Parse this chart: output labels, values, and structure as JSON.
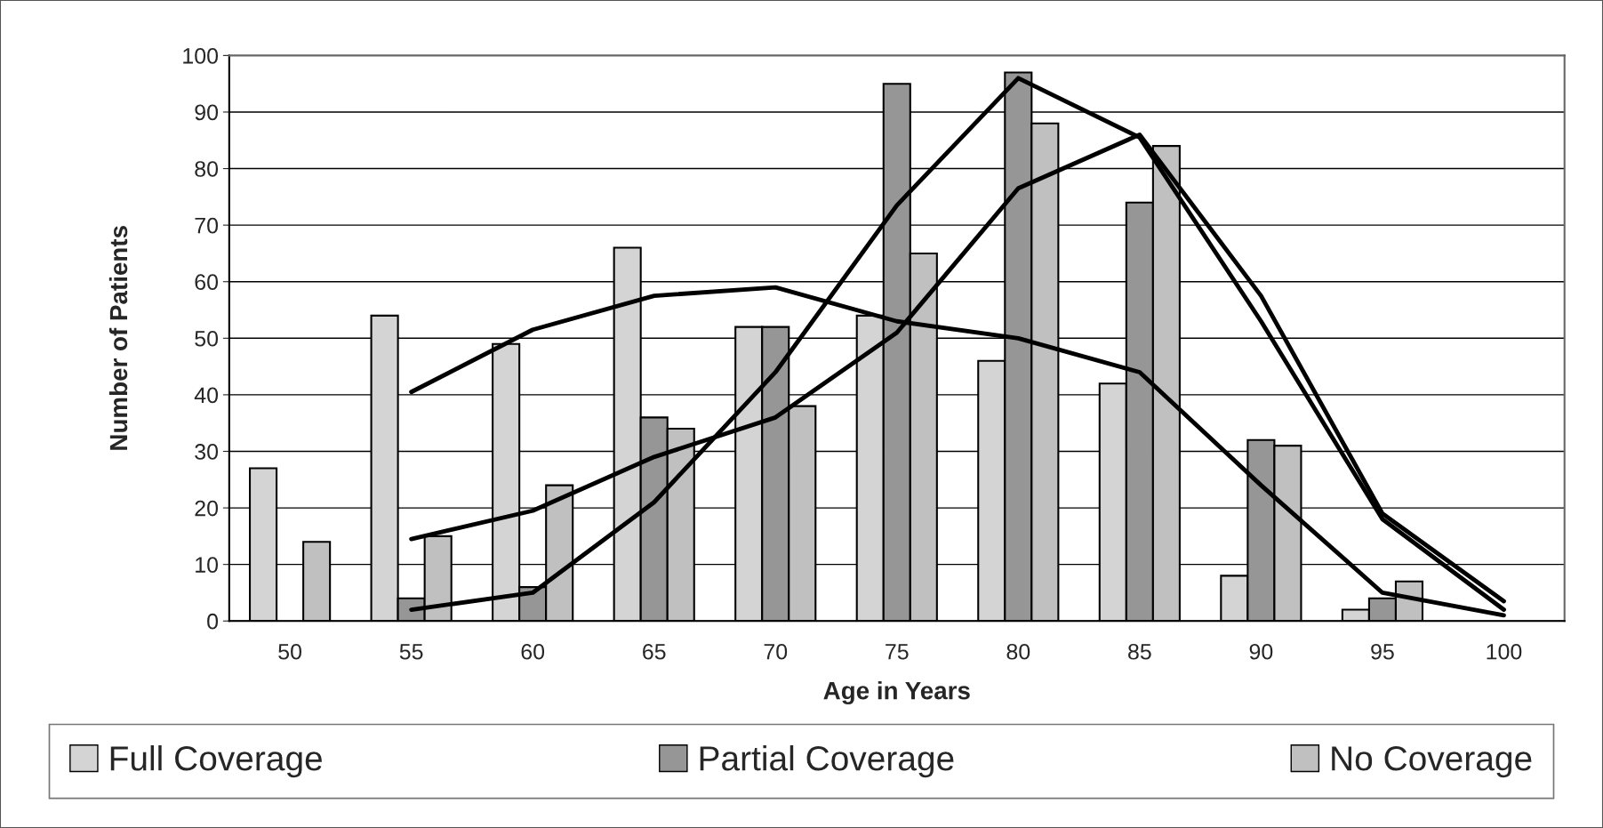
{
  "chart_data": {
    "type": "bar",
    "xlabel": "Age in Years",
    "ylabel": "Number of Patients",
    "categories": [
      "50",
      "55",
      "60",
      "65",
      "70",
      "75",
      "80",
      "85",
      "90",
      "95",
      "100"
    ],
    "series": [
      {
        "name": "Full Coverage",
        "color": "#d4d4d4",
        "values": [
          27,
          54,
          49,
          66,
          52,
          54,
          46,
          42,
          8,
          2,
          null
        ]
      },
      {
        "name": "Partial Coverage",
        "color": "#969696",
        "values": [
          null,
          4,
          6,
          36,
          52,
          95,
          97,
          74,
          32,
          4,
          null
        ]
      },
      {
        "name": "No Coverage",
        "color": "#c0c0c0",
        "values": [
          14,
          15,
          24,
          34,
          38,
          65,
          88,
          84,
          31,
          7,
          null
        ]
      },
      {
        "type": "line",
        "color": "#000000",
        "values": [
          null,
          40.5,
          51.5,
          57.5,
          59,
          53,
          50,
          44,
          24,
          5,
          1
        ]
      },
      {
        "type": "line",
        "color": "#000000",
        "values": [
          null,
          2,
          5,
          21,
          44,
          73.5,
          96,
          85.5,
          53,
          18,
          2
        ]
      },
      {
        "type": "line",
        "color": "#000000",
        "values": [
          null,
          14.5,
          19.5,
          29,
          36,
          51,
          76.5,
          86,
          57.5,
          19,
          3.5
        ]
      }
    ],
    "ylim": [
      0,
      100
    ],
    "yticks": [
      0,
      10,
      20,
      30,
      40,
      50,
      60,
      70,
      80,
      90,
      100
    ],
    "grid": "y",
    "legend": "bottom",
    "marker": "none",
    "line_style": "solid"
  }
}
